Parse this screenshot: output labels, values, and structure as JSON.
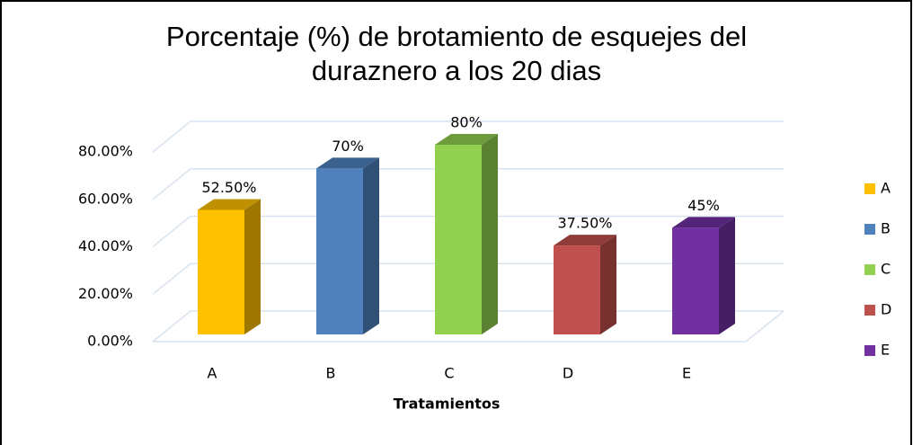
{
  "chart_data": {
    "type": "bar3d",
    "title": "Porcentaje (%) de brotamiento de esquejes del duraznero a los 20 dias",
    "x_label": "Tratamientos",
    "categories": [
      "A",
      "B",
      "C",
      "D",
      "E"
    ],
    "values": [
      52.5,
      70,
      80,
      37.5,
      45
    ],
    "value_labels": [
      "52.50%",
      "70%",
      "80%",
      "37.50%",
      "45%"
    ],
    "colors": [
      "#ffc000",
      "#4f81bd",
      "#92d050",
      "#c0504d",
      "#7030a0"
    ],
    "ylim": [
      0,
      80
    ],
    "yticks": [
      {
        "value": 0,
        "label": "0.00%"
      },
      {
        "value": 20,
        "label": "20.00%"
      },
      {
        "value": 40,
        "label": "40.00%"
      },
      {
        "value": 60,
        "label": "60.00%"
      },
      {
        "value": 80,
        "label": "80.00%"
      }
    ],
    "grid": true,
    "legend": "right"
  }
}
